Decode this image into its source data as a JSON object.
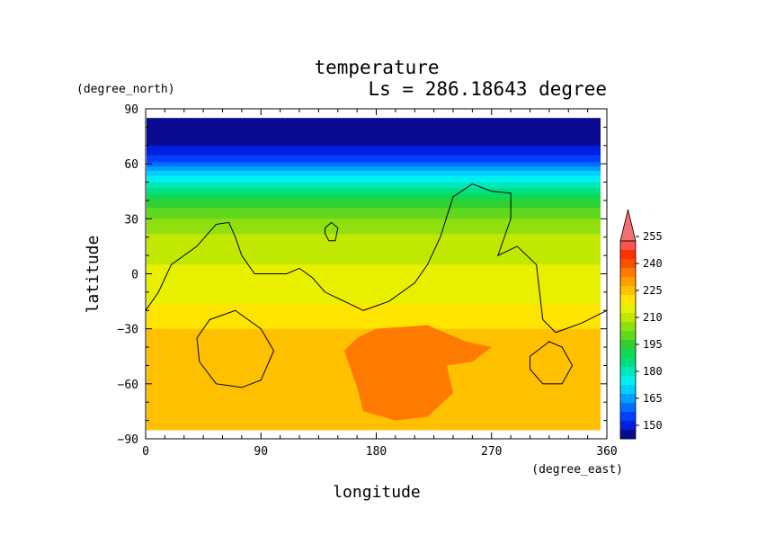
{
  "chart_data": {
    "type": "heatmap",
    "title": "temperature",
    "subtitle": "Ls = 286.18643 degree",
    "xlabel": "longitude",
    "ylabel": "latitude",
    "xunits": "(degree_east)",
    "yunits": "(degree_north)",
    "xlim": [
      0,
      360
    ],
    "ylim": [
      -90,
      90
    ],
    "x_ticks": [
      "0",
      "90",
      "180",
      "270",
      "360"
    ],
    "y_ticks": [
      "90",
      "60",
      "30",
      "0",
      "−30",
      "−60",
      "−90"
    ],
    "colorbar": {
      "ticks": [
        "255",
        "240",
        "225",
        "210",
        "195",
        "180",
        "165",
        "150"
      ],
      "levels": [
        {
          "range": [
            0,
            150
          ],
          "color": "#0a0a90"
        },
        {
          "range": [
            150,
            155
          ],
          "color": "#0020e0"
        },
        {
          "range": [
            155,
            160
          ],
          "color": "#0040ff"
        },
        {
          "range": [
            160,
            165
          ],
          "color": "#0070ff"
        },
        {
          "range": [
            165,
            170
          ],
          "color": "#00a0ff"
        },
        {
          "range": [
            170,
            175
          ],
          "color": "#00d0ff"
        },
        {
          "range": [
            175,
            180
          ],
          "color": "#00f0f0"
        },
        {
          "range": [
            180,
            185
          ],
          "color": "#00e8b8"
        },
        {
          "range": [
            185,
            190
          ],
          "color": "#00e080"
        },
        {
          "range": [
            190,
            195
          ],
          "color": "#10d850"
        },
        {
          "range": [
            195,
            200
          ],
          "color": "#30d030"
        },
        {
          "range": [
            200,
            205
          ],
          "color": "#60d820"
        },
        {
          "range": [
            205,
            210
          ],
          "color": "#90e010"
        },
        {
          "range": [
            210,
            215
          ],
          "color": "#c0e800"
        },
        {
          "range": [
            215,
            220
          ],
          "color": "#e8f000"
        },
        {
          "range": [
            220,
            225
          ],
          "color": "#ffe400"
        },
        {
          "range": [
            225,
            230
          ],
          "color": "#ffc000"
        },
        {
          "range": [
            230,
            235
          ],
          "color": "#ff9e00"
        },
        {
          "range": [
            235,
            240
          ],
          "color": "#ff7a00"
        },
        {
          "range": [
            240,
            245
          ],
          "color": "#ff5000"
        },
        {
          "range": [
            245,
            250
          ],
          "color": "#ff3000"
        },
        {
          "range": [
            250,
            255
          ],
          "color": "#ff5050"
        },
        {
          "range": [
            255,
            999
          ],
          "color": "#f07070"
        }
      ]
    },
    "zonal_profile": [
      {
        "lat": 85,
        "t": 148
      },
      {
        "lat": 70,
        "t": 150
      },
      {
        "lat": 62,
        "t": 158
      },
      {
        "lat": 55,
        "t": 172
      },
      {
        "lat": 50,
        "t": 180
      },
      {
        "lat": 45,
        "t": 188
      },
      {
        "lat": 40,
        "t": 195
      },
      {
        "lat": 35,
        "t": 201
      },
      {
        "lat": 30,
        "t": 205
      },
      {
        "lat": 25,
        "t": 208
      },
      {
        "lat": 20,
        "t": 211
      },
      {
        "lat": 10,
        "t": 214
      },
      {
        "lat": 0,
        "t": 216
      },
      {
        "lat": -10,
        "t": 218
      },
      {
        "lat": -20,
        "t": 221
      },
      {
        "lat": -30,
        "t": 225
      },
      {
        "lat": -45,
        "t": 226
      },
      {
        "lat": -60,
        "t": 225
      },
      {
        "lat": -70,
        "t": 227
      },
      {
        "lat": -85,
        "t": 228
      }
    ],
    "warm_region": [
      [
        180,
        -30
      ],
      [
        220,
        -28
      ],
      [
        250,
        -37
      ],
      [
        270,
        -40
      ],
      [
        255,
        -48
      ],
      [
        235,
        -50
      ],
      [
        240,
        -65
      ],
      [
        220,
        -78
      ],
      [
        195,
        -80
      ],
      [
        170,
        -75
      ],
      [
        165,
        -62
      ],
      [
        160,
        -52
      ],
      [
        155,
        -42
      ],
      [
        165,
        -35
      ]
    ],
    "land_contours": [
      [
        [
          0,
          -20
        ],
        [
          10,
          -10
        ],
        [
          20,
          5
        ],
        [
          40,
          15
        ],
        [
          55,
          27
        ],
        [
          65,
          28
        ],
        [
          70,
          20
        ],
        [
          75,
          10
        ],
        [
          85,
          0
        ],
        [
          110,
          0
        ],
        [
          120,
          3
        ],
        [
          130,
          -2
        ],
        [
          140,
          -10
        ],
        [
          155,
          -15
        ],
        [
          170,
          -20
        ],
        [
          190,
          -15
        ],
        [
          210,
          -5
        ],
        [
          220,
          5
        ],
        [
          230,
          20
        ],
        [
          240,
          42
        ],
        [
          255,
          49
        ],
        [
          270,
          45
        ],
        [
          285,
          44
        ],
        [
          285,
          30
        ],
        [
          275,
          10
        ],
        [
          290,
          15
        ],
        [
          305,
          5
        ],
        [
          310,
          -25
        ],
        [
          320,
          -32
        ],
        [
          340,
          -27
        ],
        [
          360,
          -20
        ]
      ],
      [
        [
          140,
          25
        ],
        [
          145,
          28
        ],
        [
          150,
          25
        ],
        [
          148,
          18
        ],
        [
          143,
          18
        ],
        [
          140,
          22
        ],
        [
          140,
          25
        ]
      ],
      [
        [
          40,
          -35
        ],
        [
          50,
          -25
        ],
        [
          70,
          -20
        ],
        [
          90,
          -30
        ],
        [
          100,
          -42
        ],
        [
          90,
          -58
        ],
        [
          75,
          -62
        ],
        [
          55,
          -60
        ],
        [
          42,
          -48
        ],
        [
          40,
          -35
        ]
      ],
      [
        [
          300,
          -45
        ],
        [
          315,
          -37
        ],
        [
          325,
          -40
        ],
        [
          333,
          -50
        ],
        [
          325,
          -60
        ],
        [
          310,
          -60
        ],
        [
          300,
          -52
        ],
        [
          300,
          -45
        ]
      ]
    ]
  }
}
